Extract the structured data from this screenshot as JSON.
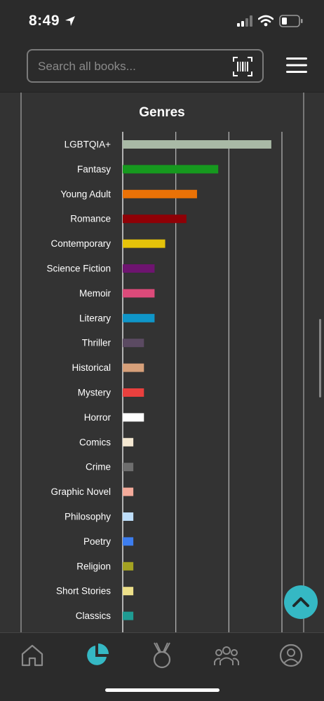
{
  "status_bar": {
    "time": "8:49"
  },
  "search": {
    "placeholder": "Search all books..."
  },
  "chart_data": {
    "type": "bar",
    "orientation": "horizontal",
    "title": "Genres",
    "categories": [
      "LGBTQIA+",
      "Fantasy",
      "Young Adult",
      "Romance",
      "Contemporary",
      "Science Fiction",
      "Memoir",
      "Literary",
      "Thriller",
      "Historical",
      "Mystery",
      "Horror",
      "Comics",
      "Crime",
      "Graphic Novel",
      "Philosophy",
      "Poetry",
      "Religion",
      "Short Stories",
      "Classics"
    ],
    "values": [
      14,
      9,
      7,
      6,
      4,
      3,
      3,
      3,
      2,
      2,
      2,
      2,
      1,
      1,
      1,
      1,
      1,
      1,
      1,
      1
    ],
    "colors": [
      "#a9b9a6",
      "#16991e",
      "#ea7206",
      "#8f0006",
      "#e5c30a",
      "#6e1470",
      "#dc4a7a",
      "#0f96c9",
      "#5b4a62",
      "#d7a07a",
      "#e9403e",
      "#ffffff",
      "#f4e8d2",
      "#6e6e6e",
      "#f4ab9b",
      "#bedef9",
      "#3d7ef0",
      "#a4a322",
      "#ede08a",
      "#1f9c93"
    ],
    "xlim": [
      0,
      15
    ],
    "grid": true
  },
  "tabs": [
    {
      "icon": "home-icon"
    },
    {
      "icon": "stats-pie-icon",
      "active": true
    },
    {
      "icon": "medal-icon"
    },
    {
      "icon": "community-icon"
    },
    {
      "icon": "profile-icon"
    }
  ],
  "colors": {
    "accent": "#35b8c4",
    "background": "#2b2b2b",
    "panel": "#333333"
  }
}
